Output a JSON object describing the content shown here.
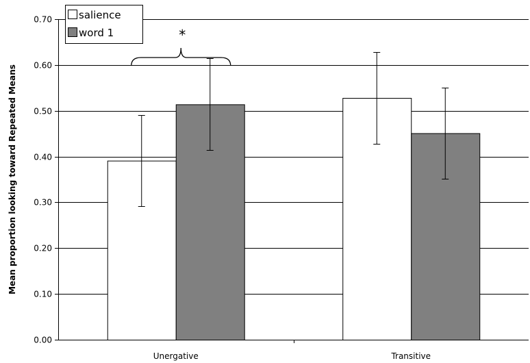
{
  "chart_data": {
    "type": "bar",
    "title": "",
    "xlabel": "",
    "ylabel": "Mean proportion looking toward Repeated Means",
    "ylim": [
      0,
      0.7
    ],
    "yticks": [
      "0.00",
      "0.10",
      "0.20",
      "0.30",
      "0.40",
      "0.50",
      "0.60",
      "0.70"
    ],
    "categories": [
      "Unergative",
      "Transitive"
    ],
    "grid": true,
    "legend_position": "top-left",
    "series": [
      {
        "name": "salience",
        "color": "#ffffff",
        "values": [
          0.391,
          0.528
        ],
        "error": [
          0.1,
          0.1
        ]
      },
      {
        "name": "word 1",
        "color": "#808080",
        "values": [
          0.514,
          0.451
        ],
        "error": [
          0.1,
          0.1
        ]
      }
    ],
    "annotations": [
      {
        "text": "*",
        "category": "Unergative",
        "between_series": [
          "salience",
          "word 1"
        ]
      }
    ]
  }
}
